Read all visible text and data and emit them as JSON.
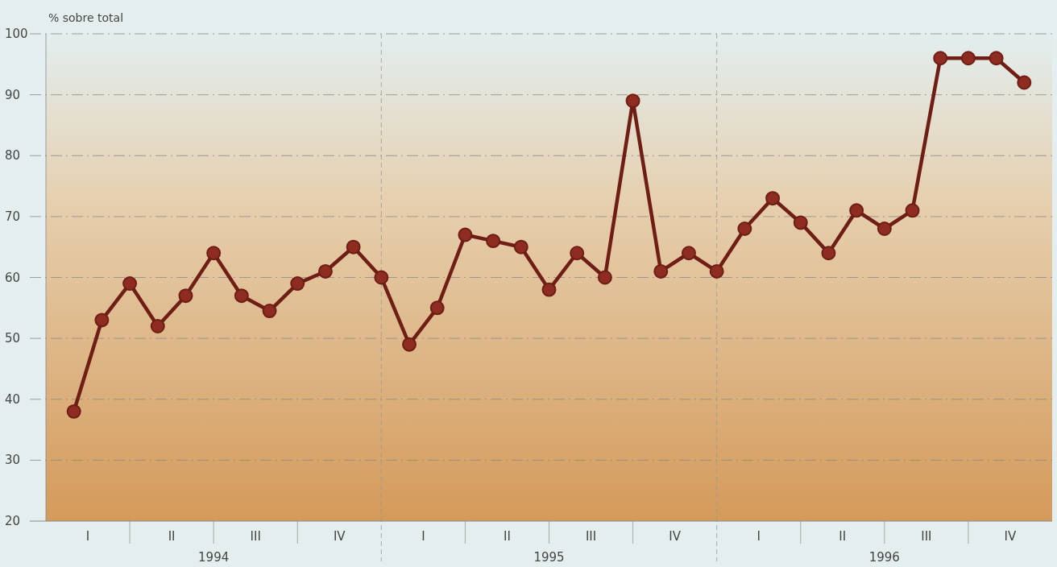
{
  "chart_data": {
    "type": "line",
    "ylabel": "% sobre total",
    "categories": [
      null,
      null,
      null,
      null,
      null,
      null,
      null,
      null,
      null,
      null,
      null,
      null,
      null,
      null,
      null,
      null,
      null,
      null,
      null,
      null,
      null,
      null,
      null,
      null,
      null,
      null,
      null,
      null,
      null,
      null,
      null,
      null,
      null,
      null,
      null
    ],
    "series": [
      {
        "color": "#6e1e14",
        "values": [
          38,
          53,
          59,
          52,
          57,
          64,
          57,
          54.5,
          59,
          61,
          65,
          60,
          49,
          55,
          67,
          66,
          65,
          58,
          64,
          60,
          89,
          61,
          64,
          61,
          68,
          73,
          69,
          64,
          71,
          68,
          71,
          96,
          96,
          96,
          92
        ]
      }
    ],
    "marker": "circle",
    "line_style": "solid",
    "grid": "y",
    "ylim": [
      20,
      100
    ],
    "yticks": [
      20,
      30,
      40,
      50,
      60,
      70,
      80,
      90,
      100
    ],
    "annotations": [
      "I",
      "II",
      "III",
      "IV",
      "I",
      "II",
      "III",
      "IV",
      "I",
      "II",
      "III",
      "IV",
      "1994",
      "1995",
      "1996"
    ]
  }
}
